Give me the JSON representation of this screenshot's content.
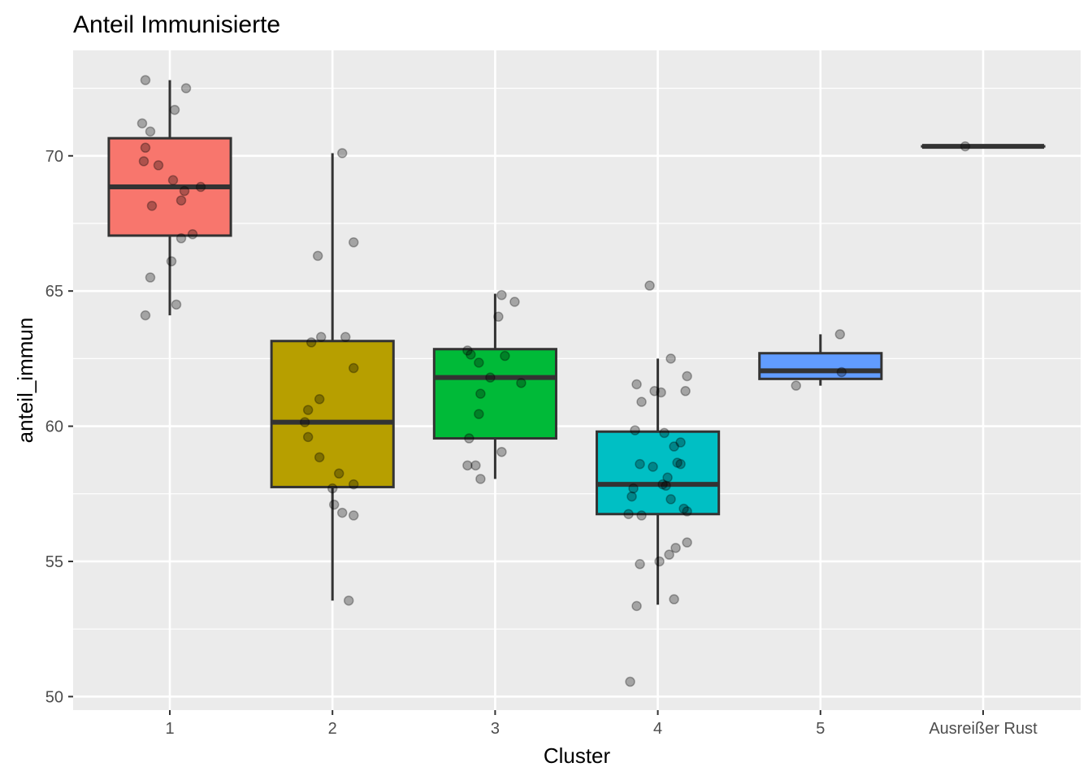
{
  "chart_data": {
    "type": "box",
    "title": "Anteil Immunisierte",
    "xlabel": "Cluster",
    "ylabel": "anteil_immun",
    "ylim": [
      49.5,
      73.9
    ],
    "yticks": [
      50,
      55,
      60,
      65,
      70
    ],
    "grid": true,
    "categories": [
      "1",
      "2",
      "3",
      "4",
      "5",
      "Ausreißer Rust"
    ],
    "colors": [
      "#F8766D",
      "#B79F00",
      "#00BA38",
      "#00BFC4",
      "#619CFF",
      "#F564E3"
    ],
    "boxes": [
      {
        "q1": 67.05,
        "median": 68.85,
        "q3": 70.65,
        "whisker_low": 64.1,
        "whisker_high": 72.8
      },
      {
        "q1": 57.75,
        "median": 60.15,
        "q3": 63.15,
        "whisker_low": 53.55,
        "whisker_high": 70.1
      },
      {
        "q1": 59.55,
        "median": 61.8,
        "q3": 62.85,
        "whisker_low": 58.05,
        "whisker_high": 64.9
      },
      {
        "q1": 56.75,
        "median": 57.85,
        "q3": 59.8,
        "whisker_low": 53.4,
        "whisker_high": 62.5
      },
      {
        "q1": 61.75,
        "median": 62.05,
        "q3": 62.7,
        "whisker_low": 61.5,
        "whisker_high": 63.4
      },
      {
        "q1": 70.35,
        "median": 70.35,
        "q3": 70.35,
        "whisker_low": 70.35,
        "whisker_high": 70.35
      }
    ],
    "points": [
      [
        [
          -0.15,
          72.8
        ],
        [
          0.1,
          72.5
        ],
        [
          0.03,
          71.7
        ],
        [
          -0.17,
          71.2
        ],
        [
          -0.12,
          70.9
        ],
        [
          -0.15,
          70.3
        ],
        [
          -0.16,
          69.8
        ],
        [
          -0.07,
          69.65
        ],
        [
          0.02,
          69.1
        ],
        [
          0.19,
          68.85
        ],
        [
          0.09,
          68.7
        ],
        [
          0.07,
          68.35
        ],
        [
          -0.11,
          68.15
        ],
        [
          0.14,
          67.1
        ],
        [
          0.07,
          66.95
        ],
        [
          0.01,
          66.1
        ],
        [
          -0.12,
          65.5
        ],
        [
          0.04,
          64.5
        ],
        [
          -0.15,
          64.1
        ]
      ],
      [
        [
          0.06,
          70.1
        ],
        [
          0.13,
          66.8
        ],
        [
          -0.09,
          66.3
        ],
        [
          -0.07,
          63.3
        ],
        [
          0.08,
          63.3
        ],
        [
          -0.13,
          63.1
        ],
        [
          0.13,
          62.15
        ],
        [
          -0.08,
          61.0
        ],
        [
          -0.15,
          60.6
        ],
        [
          -0.17,
          60.15
        ],
        [
          -0.15,
          59.6
        ],
        [
          -0.08,
          58.85
        ],
        [
          0.04,
          58.25
        ],
        [
          0.13,
          57.85
        ],
        [
          0.0,
          57.7
        ],
        [
          0.01,
          57.1
        ],
        [
          0.06,
          56.8
        ],
        [
          0.13,
          56.7
        ],
        [
          0.1,
          53.55
        ]
      ],
      [
        [
          0.04,
          64.85
        ],
        [
          0.12,
          64.6
        ],
        [
          0.02,
          64.05
        ],
        [
          -0.17,
          62.8
        ],
        [
          -0.15,
          62.65
        ],
        [
          0.06,
          62.6
        ],
        [
          -0.1,
          62.35
        ],
        [
          -0.03,
          61.8
        ],
        [
          0.16,
          61.6
        ],
        [
          -0.09,
          61.2
        ],
        [
          -0.1,
          60.45
        ],
        [
          -0.16,
          59.55
        ],
        [
          0.04,
          59.05
        ],
        [
          -0.17,
          58.55
        ],
        [
          -0.12,
          58.55
        ],
        [
          -0.09,
          58.05
        ]
      ],
      [
        [
          -0.05,
          65.2
        ],
        [
          0.08,
          62.5
        ],
        [
          0.18,
          61.85
        ],
        [
          -0.13,
          61.55
        ],
        [
          -0.02,
          61.3
        ],
        [
          0.02,
          61.25
        ],
        [
          0.17,
          61.3
        ],
        [
          -0.1,
          60.9
        ],
        [
          -0.14,
          59.85
        ],
        [
          0.04,
          59.75
        ],
        [
          0.14,
          59.4
        ],
        [
          0.1,
          59.25
        ],
        [
          -0.11,
          58.6
        ],
        [
          -0.03,
          58.5
        ],
        [
          0.12,
          58.65
        ],
        [
          0.14,
          58.6
        ],
        [
          0.06,
          58.1
        ],
        [
          0.03,
          57.85
        ],
        [
          0.05,
          57.8
        ],
        [
          -0.15,
          57.7
        ],
        [
          -0.16,
          57.4
        ],
        [
          0.08,
          57.3
        ],
        [
          0.16,
          56.95
        ],
        [
          0.18,
          56.85
        ],
        [
          -0.18,
          56.75
        ],
        [
          -0.1,
          56.7
        ],
        [
          0.18,
          55.7
        ],
        [
          0.11,
          55.5
        ],
        [
          0.07,
          55.25
        ],
        [
          0.01,
          55.0
        ],
        [
          -0.11,
          54.9
        ],
        [
          0.1,
          53.6
        ],
        [
          -0.13,
          53.35
        ],
        [
          -0.17,
          50.55
        ]
      ],
      [
        [
          0.12,
          63.4
        ],
        [
          0.13,
          62.0
        ],
        [
          -0.15,
          61.5
        ]
      ],
      [
        [
          -0.11,
          70.35
        ]
      ]
    ]
  }
}
